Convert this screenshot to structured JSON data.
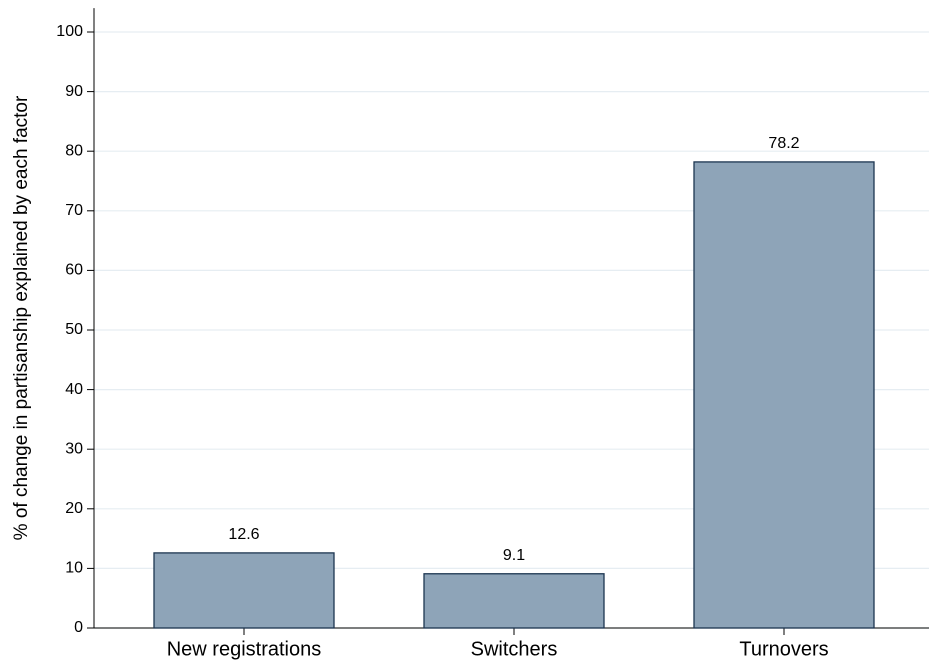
{
  "chart_data": {
    "type": "bar",
    "y_label": "% of change in partisanship explained by each factor",
    "categories": [
      "New registrations",
      "Switchers",
      "Turnovers"
    ],
    "values": [
      12.6,
      9.1,
      78.2
    ],
    "color": "#8ea4b8",
    "ylim": [
      0,
      104
    ],
    "yticks": [
      0,
      10,
      20,
      30,
      40,
      50,
      60,
      70,
      80,
      90,
      100
    ],
    "grid": true
  }
}
